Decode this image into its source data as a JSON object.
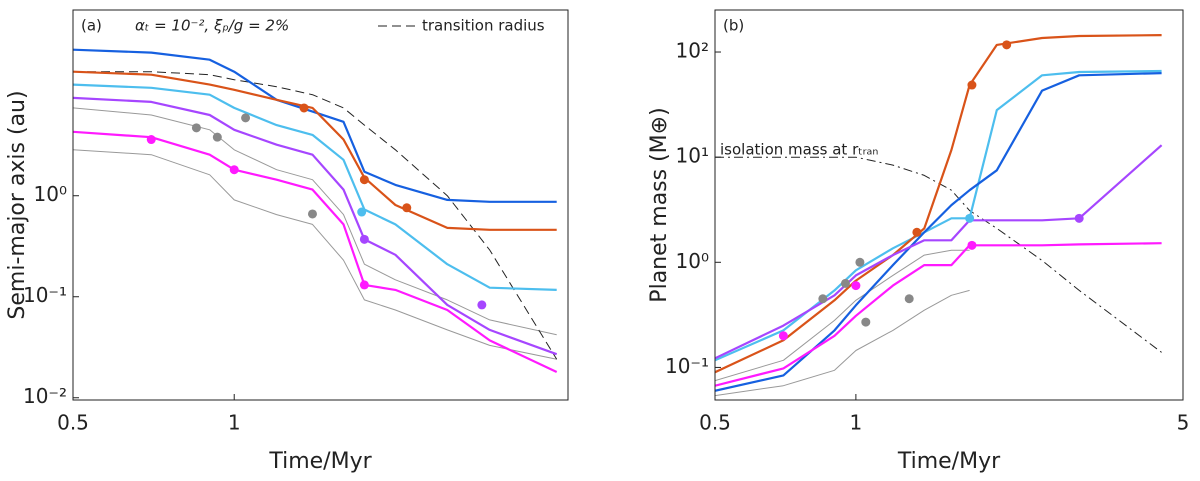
{
  "chart_data": [
    {
      "type": "line",
      "panel": "(a)",
      "annotation": "αₜ = 10⁻², ξₚ/g = 2%",
      "xlabel": "Time/Myr",
      "ylabel": "Semi-major axis (au)",
      "log_x": true,
      "log_y": true,
      "legend": "top-right",
      "xlim": [
        0.5,
        4.2
      ],
      "ylim": [
        0.0095,
        69
      ],
      "xticks": [
        0.5,
        1
      ],
      "yticks": [
        {
          "value": 0.01,
          "label": "10⁻²"
        },
        {
          "value": 0.1,
          "label": "10⁻¹"
        },
        {
          "value": 1,
          "label": "10⁰"
        }
      ],
      "x": [
        0.5,
        0.7,
        0.9,
        1.0,
        1.2,
        1.4,
        1.6,
        1.75,
        2.0,
        2.5,
        3.0,
        4.0
      ],
      "series": [
        {
          "color": "#999999",
          "values": [
            7.4,
            6.3,
            4.5,
            2.85,
            1.81,
            1.44,
            0.65,
            0.21,
            0.147,
            0.093,
            0.059,
            0.042
          ]
        },
        {
          "color": "#999999",
          "values": [
            2.85,
            2.55,
            1.61,
            0.91,
            0.65,
            0.52,
            0.23,
            0.093,
            0.074,
            0.047,
            0.033,
            0.024
          ]
        },
        {
          "name": "transition radius",
          "color": "#222222",
          "dash": "dashed",
          "values": [
            16.9,
            16.9,
            15.8,
            14.1,
            12.0,
            10.0,
            7.4,
            5.0,
            2.85,
            1.0,
            0.29,
            0.024
          ]
        },
        {
          "color": "#1660e0",
          "values": [
            27.9,
            26.1,
            22.2,
            16.9,
            8.9,
            6.8,
            5.4,
            1.73,
            1.28,
            0.91,
            0.87,
            0.87
          ]
        },
        {
          "color": "#d95319",
          "values": [
            16.9,
            15.8,
            12.6,
            11.2,
            8.9,
            7.4,
            3.6,
            1.51,
            0.81,
            0.48,
            0.46,
            0.46
          ]
        },
        {
          "color": "#4dbeee",
          "values": [
            12.6,
            11.7,
            10.0,
            7.4,
            5.0,
            4.0,
            2.27,
            0.73,
            0.52,
            0.21,
            0.123,
            0.117
          ]
        },
        {
          "color": "#a646ff",
          "values": [
            9.3,
            8.5,
            6.3,
            4.5,
            3.2,
            2.55,
            1.15,
            0.37,
            0.26,
            0.083,
            0.047,
            0.027
          ]
        },
        {
          "color": "#ff1aff",
          "values": [
            4.3,
            3.8,
            2.55,
            1.81,
            1.44,
            1.15,
            0.52,
            0.131,
            0.117,
            0.074,
            0.037,
            0.018
          ]
        }
      ],
      "points": [
        {
          "color": "#888888",
          "x": [
            0.85,
            0.93,
            1.05,
            1.4
          ],
          "values": [
            4.7,
            3.8,
            5.9,
            0.66
          ]
        },
        {
          "color": "#d95319",
          "x": [
            1.35,
            1.75,
            2.1
          ],
          "values": [
            7.4,
            1.44,
            0.76
          ]
        },
        {
          "color": "#4dbeee",
          "x": [
            1.73
          ],
          "values": [
            0.69
          ]
        },
        {
          "color": "#a646ff",
          "x": [
            1.75,
            2.9
          ],
          "values": [
            0.37,
            0.083
          ]
        },
        {
          "color": "#ff1aff",
          "x": [
            0.7,
            1.0,
            1.75
          ],
          "values": [
            3.6,
            1.81,
            0.131
          ]
        }
      ]
    },
    {
      "type": "line",
      "panel": "(b)",
      "annotation": "isolation mass at rₜᵣₐₙ",
      "xlabel": "Time/Myr",
      "ylabel": "Planet mass (M⊕)",
      "log_x": true,
      "log_y": true,
      "xlim": [
        0.5,
        5
      ],
      "ylim": [
        0.049,
        251
      ],
      "xticks": [
        0.5,
        1,
        5
      ],
      "yticks": [
        {
          "value": 0.1,
          "label": "10⁻¹"
        },
        {
          "value": 1,
          "label": "10⁰"
        },
        {
          "value": 10,
          "label": "10¹"
        },
        {
          "value": 100,
          "label": "10²"
        }
      ],
      "x": [
        0.5,
        0.7,
        0.9,
        1.0,
        1.2,
        1.4,
        1.6,
        1.75,
        2.0,
        2.5,
        3.0,
        4.5
      ],
      "series": [
        {
          "color": "#999999",
          "values": [
            0.075,
            0.117,
            0.28,
            0.435,
            0.75,
            1.17,
            1.3,
            1.3,
            null,
            null,
            null,
            null
          ]
        },
        {
          "color": "#999999",
          "values": [
            0.054,
            0.067,
            0.094,
            0.145,
            0.225,
            0.35,
            0.485,
            0.54,
            null,
            null,
            null,
            null
          ]
        },
        {
          "color": "#222222",
          "dash": "dashdot",
          "values": [
            10,
            10,
            10,
            10,
            8.4,
            6.7,
            4.85,
            3.1,
            2.1,
            1.04,
            0.54,
            0.139
          ]
        },
        {
          "color": "#4dbeee",
          "values": [
            0.117,
            0.225,
            0.54,
            0.84,
            1.36,
            1.93,
            2.62,
            2.62,
            28,
            60,
            64.5,
            66
          ]
        },
        {
          "color": "#1660e0",
          "values": [
            0.06,
            0.084,
            0.225,
            0.39,
            0.94,
            1.93,
            3.5,
            4.85,
            7.5,
            43,
            60,
            63
          ]
        },
        {
          "color": "#d95319",
          "values": [
            0.09,
            0.181,
            0.435,
            0.67,
            1.17,
            2.1,
            11.7,
            48.5,
            117,
            136,
            142,
            145
          ]
        },
        {
          "color": "#a646ff",
          "values": [
            0.122,
            0.25,
            0.485,
            0.75,
            1.17,
            1.62,
            1.62,
            2.51,
            2.51,
            2.51,
            2.62,
            13
          ]
        },
        {
          "color": "#ff1aff",
          "values": [
            0.067,
            0.098,
            0.2,
            0.31,
            0.6,
            0.94,
            0.94,
            1.45,
            1.45,
            1.45,
            1.48,
            1.52
          ]
        }
      ],
      "points": [
        {
          "color": "#888888",
          "x": [
            0.85,
            0.95,
            1.02,
            1.05,
            1.3
          ],
          "values": [
            0.45,
            0.63,
            1.0,
            0.27,
            0.45
          ]
        },
        {
          "color": "#d95319",
          "x": [
            1.35,
            1.77,
            2.1
          ],
          "values": [
            1.93,
            48.5,
            117
          ]
        },
        {
          "color": "#4dbeee",
          "x": [
            1.75
          ],
          "values": [
            2.62
          ]
        },
        {
          "color": "#a646ff",
          "x": [
            3.0
          ],
          "values": [
            2.62
          ]
        },
        {
          "color": "#ff1aff",
          "x": [
            0.7,
            1.0,
            1.77
          ],
          "values": [
            0.2,
            0.6,
            1.45
          ]
        }
      ]
    }
  ]
}
